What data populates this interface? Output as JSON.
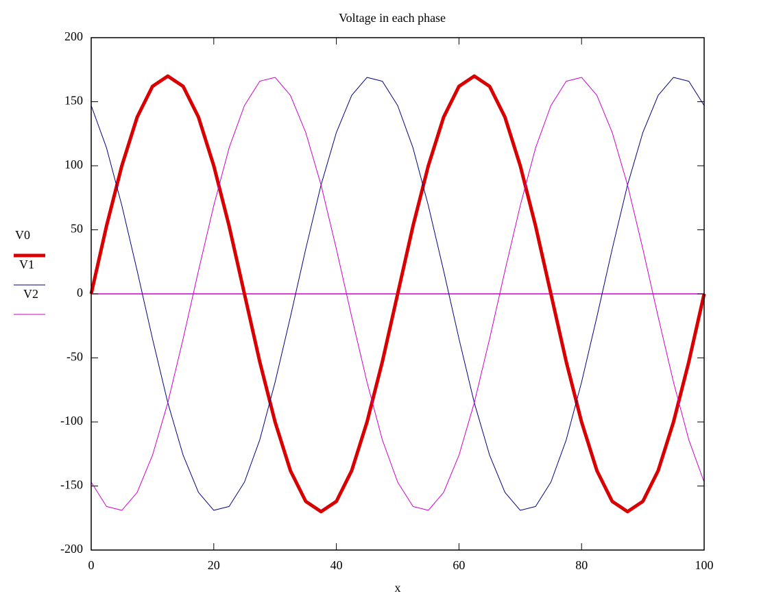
{
  "chart_data": {
    "type": "line",
    "title": "Voltage in each phase",
    "x_label": "x",
    "x": [
      0,
      2.5,
      5,
      7.5,
      10,
      12.5,
      15,
      17.5,
      20,
      22.5,
      25,
      27.5,
      30,
      32.5,
      35,
      37.5,
      40,
      42.5,
      45,
      47.5,
      50,
      52.5,
      55,
      57.5,
      60,
      62.5,
      65,
      67.5,
      70,
      72.5,
      75,
      77.5,
      80,
      82.5,
      85,
      87.5,
      90,
      92.5,
      95,
      97.5,
      100
    ],
    "series": [
      {
        "name": "V0",
        "color": "#d80000",
        "line_width": 5,
        "values": [
          0,
          53,
          100,
          138,
          162,
          170,
          162,
          138,
          100,
          53,
          0,
          -53,
          -100,
          -138,
          -162,
          -170,
          -162,
          -138,
          -100,
          -53,
          0,
          53,
          100,
          138,
          162,
          170,
          162,
          138,
          100,
          53,
          0,
          -53,
          -100,
          -138,
          -162,
          -170,
          -162,
          -138,
          -100,
          -53,
          0
        ]
      },
      {
        "name": "V1",
        "color": "#000080",
        "line_width": 1,
        "values": [
          147,
          114,
          69,
          18,
          -35,
          -85,
          -126,
          -155,
          -169,
          -166,
          -147,
          -114,
          -69,
          -18,
          35,
          85,
          126,
          155,
          169,
          166,
          147,
          114,
          69,
          18,
          -35,
          -85,
          -126,
          -155,
          -169,
          -166,
          -147,
          -114,
          -69,
          -18,
          35,
          85,
          126,
          155,
          169,
          166,
          147
        ]
      },
      {
        "name": "V2",
        "color": "#cc00cc",
        "line_width": 1,
        "values": [
          -147,
          -166,
          -169,
          -155,
          -126,
          -85,
          -35,
          18,
          69,
          114,
          147,
          166,
          169,
          155,
          126,
          85,
          35,
          -18,
          -69,
          -114,
          -147,
          -166,
          -169,
          -155,
          -126,
          -85,
          -35,
          18,
          69,
          114,
          147,
          166,
          169,
          155,
          126,
          85,
          35,
          -18,
          -69,
          -114,
          -147
        ]
      }
    ],
    "xlim": [
      0,
      100
    ],
    "xticks": [
      0,
      20,
      40,
      60,
      80,
      100
    ],
    "ylim": [
      -200,
      200
    ],
    "yticks": [
      -200,
      -150,
      -100,
      -50,
      0,
      50,
      100,
      150,
      200
    ],
    "zero_line_color": "#cc00cc",
    "grid": false,
    "legend": "left"
  }
}
